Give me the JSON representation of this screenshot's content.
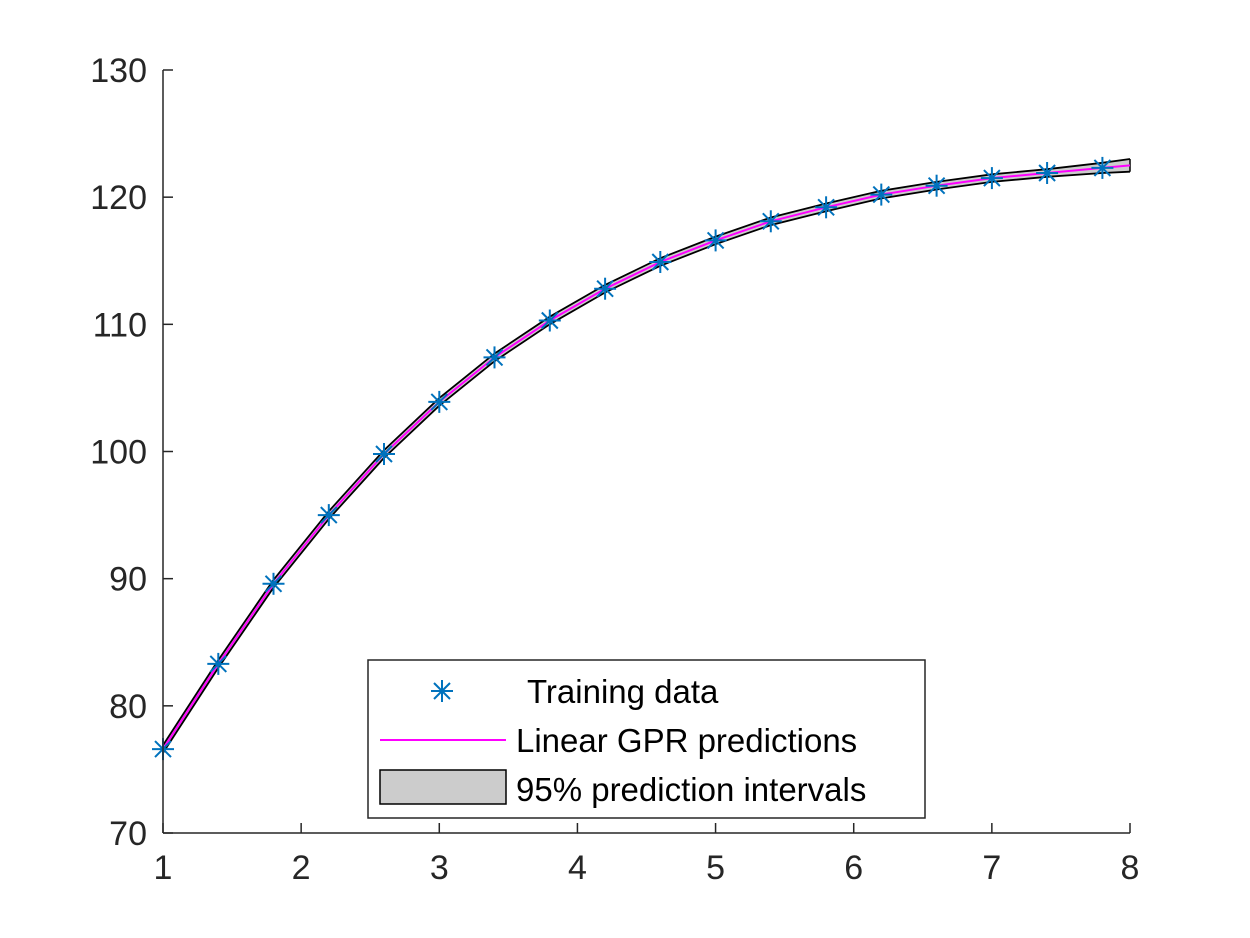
{
  "chart_data": {
    "type": "line",
    "title": "",
    "xlabel": "",
    "ylabel": "",
    "xlim": [
      1,
      8
    ],
    "ylim": [
      70,
      130
    ],
    "x_ticks": [
      1,
      2,
      3,
      4,
      5,
      6,
      7,
      8
    ],
    "y_ticks": [
      70,
      80,
      90,
      100,
      110,
      120,
      130
    ],
    "x_tick_labels": [
      "1",
      "2",
      "3",
      "4",
      "5",
      "6",
      "7",
      "8"
    ],
    "y_tick_labels": [
      "70",
      "80",
      "90",
      "100",
      "110",
      "120",
      "130"
    ],
    "grid": false,
    "legend": {
      "placement": "bottom-center",
      "entries": [
        "Training data",
        "Linear GPR predictions",
        "95% prediction intervals"
      ]
    },
    "training_data": {
      "name": "Training data",
      "marker": "asterisk",
      "color": "#0072BD",
      "x": [
        1.0,
        1.4,
        1.8,
        2.2,
        2.6,
        3.0,
        3.4,
        3.8,
        4.2,
        4.6,
        5.0,
        5.4,
        5.8,
        6.2,
        6.6,
        7.0,
        7.4,
        7.8
      ],
      "y": [
        76.6,
        83.3,
        89.6,
        95.0,
        99.8,
        103.9,
        107.4,
        110.3,
        112.8,
        114.9,
        116.6,
        118.1,
        119.2,
        120.2,
        120.9,
        121.5,
        121.9,
        122.3
      ]
    },
    "predictions": {
      "name": "Linear GPR predictions",
      "color": "#FF00FF",
      "x": [
        1.0,
        1.4,
        1.8,
        2.2,
        2.6,
        3.0,
        3.4,
        3.8,
        4.2,
        4.6,
        5.0,
        5.4,
        5.8,
        6.2,
        6.6,
        7.0,
        7.4,
        7.8,
        8.0
      ],
      "y": [
        76.6,
        83.3,
        89.6,
        95.0,
        99.8,
        103.9,
        107.4,
        110.3,
        112.8,
        114.9,
        116.6,
        118.1,
        119.2,
        120.2,
        120.9,
        121.5,
        121.9,
        122.3,
        122.5
      ]
    },
    "interval": {
      "name": "95% prediction intervals",
      "fill": "#CCCCCC",
      "edge": "#000000",
      "x": [
        1.0,
        1.4,
        1.8,
        2.2,
        2.6,
        3.0,
        3.4,
        3.8,
        4.2,
        4.6,
        5.0,
        5.4,
        5.8,
        6.2,
        6.6,
        7.0,
        7.4,
        7.8,
        8.0
      ],
      "lower": [
        76.3,
        83.0,
        89.3,
        94.7,
        99.5,
        103.6,
        107.1,
        110.0,
        112.5,
        114.6,
        116.3,
        117.8,
        118.9,
        119.9,
        120.6,
        121.2,
        121.6,
        121.9,
        122.0
      ],
      "upper": [
        76.9,
        83.6,
        89.9,
        95.3,
        100.1,
        104.2,
        107.7,
        110.6,
        113.1,
        115.2,
        116.9,
        118.4,
        119.5,
        120.5,
        121.2,
        121.8,
        122.2,
        122.7,
        123.0
      ]
    }
  }
}
